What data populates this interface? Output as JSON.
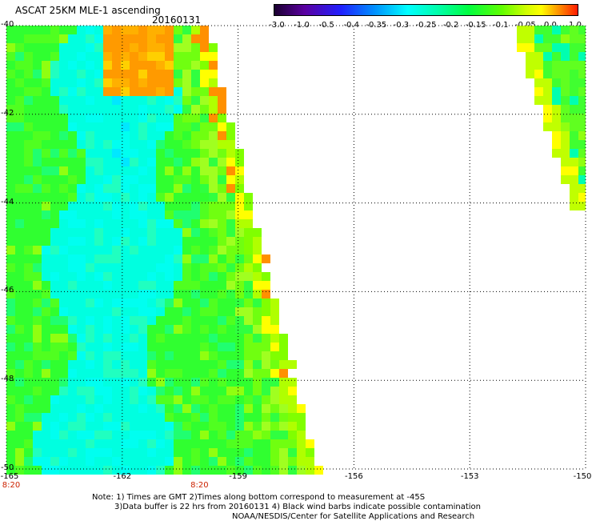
{
  "header": {
    "title": "ASCAT 25KM MLE-1 ascending",
    "date": "20160131"
  },
  "colorbar": {
    "labels": [
      "-3.0",
      "-1.0",
      "-0.5",
      "-0.4",
      "-0.35",
      "-0.3",
      "-0.25",
      "-0.2",
      "-0.15",
      "-0.1",
      "-0.05",
      "0.0",
      "1.0"
    ],
    "colors": [
      "#1a0030",
      "#5a00a0",
      "#2020ff",
      "#0080ff",
      "#00c0ff",
      "#00ffff",
      "#00ffa0",
      "#00ff40",
      "#60ff00",
      "#c0ff00",
      "#ffff00",
      "#ffa000",
      "#ff2000"
    ]
  },
  "axes": {
    "x_labels": [
      "-165",
      "-162",
      "-159",
      "-156",
      "-153",
      "-150"
    ],
    "x_range": [
      -165,
      -150
    ],
    "y_labels": [
      "-40",
      "-42",
      "-44",
      "-46",
      "-48",
      "-50"
    ],
    "y_range": [
      -50,
      -40
    ],
    "gridline_style": "dotted"
  },
  "time_labels": [
    {
      "text": "8:20",
      "lon": -165
    },
    {
      "text": "8:20",
      "lon": -160
    }
  ],
  "footer": {
    "line1": "Note: 1) Times are GMT 2)Times along bottom correspond to measurement at -45S",
    "line2": "3)Data buffer is 22 hrs from 20160131 4) Black wind barbs indicate possible contamination",
    "line3": "NOAA/NESDIS/Center for Satellite Applications and Research"
  }
}
